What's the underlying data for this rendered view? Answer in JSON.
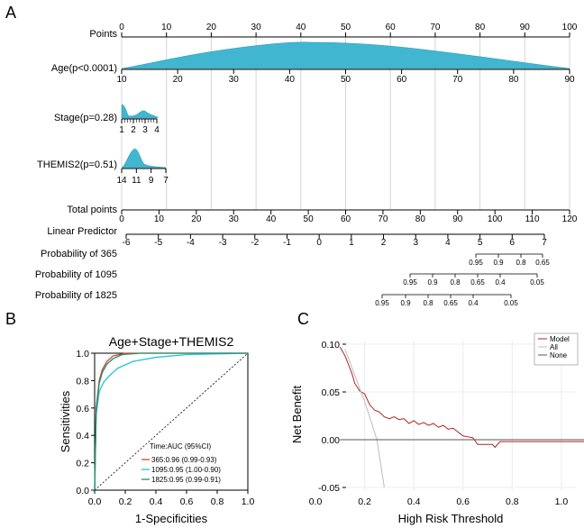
{
  "panel_letters": {
    "a": "A",
    "b": "B",
    "c": "C"
  },
  "nomogram": {
    "points": {
      "label": "Points",
      "ticks": [
        "0",
        "10",
        "20",
        "30",
        "40",
        "50",
        "60",
        "70",
        "80",
        "90",
        "100"
      ]
    },
    "age": {
      "label": "Age(p<0.0001)",
      "ticks": [
        "10",
        "20",
        "30",
        "40",
        "50",
        "60",
        "70",
        "80",
        "90"
      ]
    },
    "stage": {
      "label": "Stage(p=0.28)",
      "ticks": [
        "1",
        "2",
        "3",
        "4"
      ]
    },
    "themis2": {
      "label": "THEMIS2(p=0.51)",
      "ticks": [
        "14",
        "11",
        "9",
        "7"
      ]
    },
    "total_points": {
      "label": "Total points",
      "ticks": [
        "0",
        "10",
        "20",
        "30",
        "40",
        "50",
        "60",
        "70",
        "80",
        "90",
        "100",
        "110",
        "120"
      ]
    },
    "linear_predictor": {
      "label": "Linear Predictor",
      "ticks": [
        "-6",
        "-5",
        "-4",
        "-3",
        "-2",
        "-1",
        "0",
        "1",
        "2",
        "3",
        "4",
        "5",
        "6",
        "7"
      ]
    },
    "prob365": {
      "label": "Probability of 365",
      "ticks": [
        "0.95",
        "0.9",
        "0.8",
        "0.65"
      ]
    },
    "prob1095": {
      "label": "Probability of 1095",
      "ticks": [
        "0.95",
        "0.9",
        "0.8",
        "0.65",
        "0.4",
        "0.05"
      ]
    },
    "prob1825": {
      "label": "Probability of 1825",
      "ticks": [
        "0.95",
        "0.9",
        "0.8",
        "0.65",
        "0.4",
        "0.05"
      ]
    }
  },
  "roc": {
    "title": "Age+Stage+THEMIS2",
    "xlabel": "1-Specificities",
    "ylabel": "Sensitivities",
    "x_ticks": [
      "0.0",
      "0.2",
      "0.4",
      "0.6",
      "0.8",
      "1.0"
    ],
    "y_ticks": [
      "0.0",
      "0.2",
      "0.4",
      "0.6",
      "0.8",
      "1.0"
    ],
    "legend_title": "Time:AUC (95%CI)",
    "legend": [
      {
        "text": "365:0.96  (0.99-0.93)",
        "color": "#d9412e"
      },
      {
        "text": "1095:0.95 (1.00-0.90)",
        "color": "#27c3d8"
      },
      {
        "text": "1825:0.95 (0.99-0.91)",
        "color": "#1f8f6e"
      }
    ]
  },
  "dca": {
    "xlabel": "High Risk Threshold",
    "ylabel": "Net Benefit",
    "x_ticks": [
      "0.0",
      "0.2",
      "0.4",
      "0.6",
      "0.8",
      "1.0"
    ],
    "y_ticks": [
      "-0.05",
      "0.00",
      "0.05",
      "0.10"
    ],
    "legend": [
      {
        "text": "Model",
        "color": "#b22222"
      },
      {
        "text": "All",
        "color": "#bdbdbd"
      },
      {
        "text": "None",
        "color": "#555555"
      }
    ]
  },
  "chart_data": [
    {
      "type": "line",
      "title": "Age+Stage+THEMIS2",
      "xlabel": "1-Specificities",
      "ylabel": "Sensitivities",
      "xlim": [
        0,
        1
      ],
      "ylim": [
        0,
        1
      ],
      "series": [
        {
          "name": "365:0.96  (0.99-0.93)",
          "color": "#d9412e",
          "x": [
            0,
            0.01,
            0.03,
            0.05,
            0.08,
            0.12,
            0.2,
            0.3,
            0.5,
            1.0
          ],
          "y": [
            0,
            0.6,
            0.8,
            0.88,
            0.94,
            0.98,
            1.0,
            1.0,
            1.0,
            1.0
          ]
        },
        {
          "name": "1095:0.95 (1.00-0.90)",
          "color": "#27c3d8",
          "x": [
            0,
            0.01,
            0.03,
            0.06,
            0.1,
            0.15,
            0.25,
            0.4,
            0.6,
            1.0
          ],
          "y": [
            0,
            0.55,
            0.72,
            0.79,
            0.84,
            0.89,
            0.94,
            0.97,
            0.99,
            1.0
          ]
        },
        {
          "name": "1825:0.95 (0.99-0.91)",
          "color": "#1f8f6e",
          "x": [
            0,
            0.01,
            0.03,
            0.05,
            0.08,
            0.12,
            0.18,
            0.3,
            0.5,
            1.0
          ],
          "y": [
            0,
            0.58,
            0.78,
            0.86,
            0.92,
            0.96,
            0.99,
            1.0,
            1.0,
            1.0
          ]
        }
      ]
    },
    {
      "type": "line",
      "xlabel": "High Risk Threshold",
      "ylabel": "Net Benefit",
      "xlim": [
        0.0,
        1.0
      ],
      "ylim": [
        -0.05,
        0.1
      ],
      "series": [
        {
          "name": "Model",
          "color": "#b22222",
          "x": [
            0.1,
            0.12,
            0.14,
            0.15,
            0.16,
            0.18,
            0.2,
            0.22,
            0.24,
            0.26,
            0.28,
            0.3,
            0.32,
            0.34,
            0.36,
            0.38,
            0.4,
            0.42,
            0.44,
            0.46,
            0.48,
            0.5,
            0.52,
            0.54,
            0.56,
            0.58,
            0.6,
            0.62,
            0.64,
            0.66,
            0.7,
            0.72,
            0.73,
            0.75,
            0.8,
            0.9,
            1.0,
            1.1
          ],
          "y": [
            0.097,
            0.088,
            0.075,
            0.068,
            0.059,
            0.051,
            0.048,
            0.037,
            0.031,
            0.029,
            0.024,
            0.022,
            0.024,
            0.021,
            0.022,
            0.017,
            0.02,
            0.016,
            0.018,
            0.015,
            0.017,
            0.013,
            0.015,
            0.011,
            0.012,
            0.008,
            0.004,
            0.003,
            0.002,
            -0.005,
            -0.005,
            -0.005,
            -0.008,
            -0.002,
            -0.002,
            -0.002,
            -0.002,
            -0.002
          ]
        },
        {
          "name": "All",
          "color": "#bdbdbd",
          "x": [
            0.12,
            0.2,
            0.25,
            0.28
          ],
          "y": [
            0.095,
            0.04,
            0.0,
            -0.05
          ]
        },
        {
          "name": "None",
          "color": "#555555",
          "x": [
            0.1,
            1.1
          ],
          "y": [
            0,
            0
          ]
        }
      ]
    }
  ]
}
